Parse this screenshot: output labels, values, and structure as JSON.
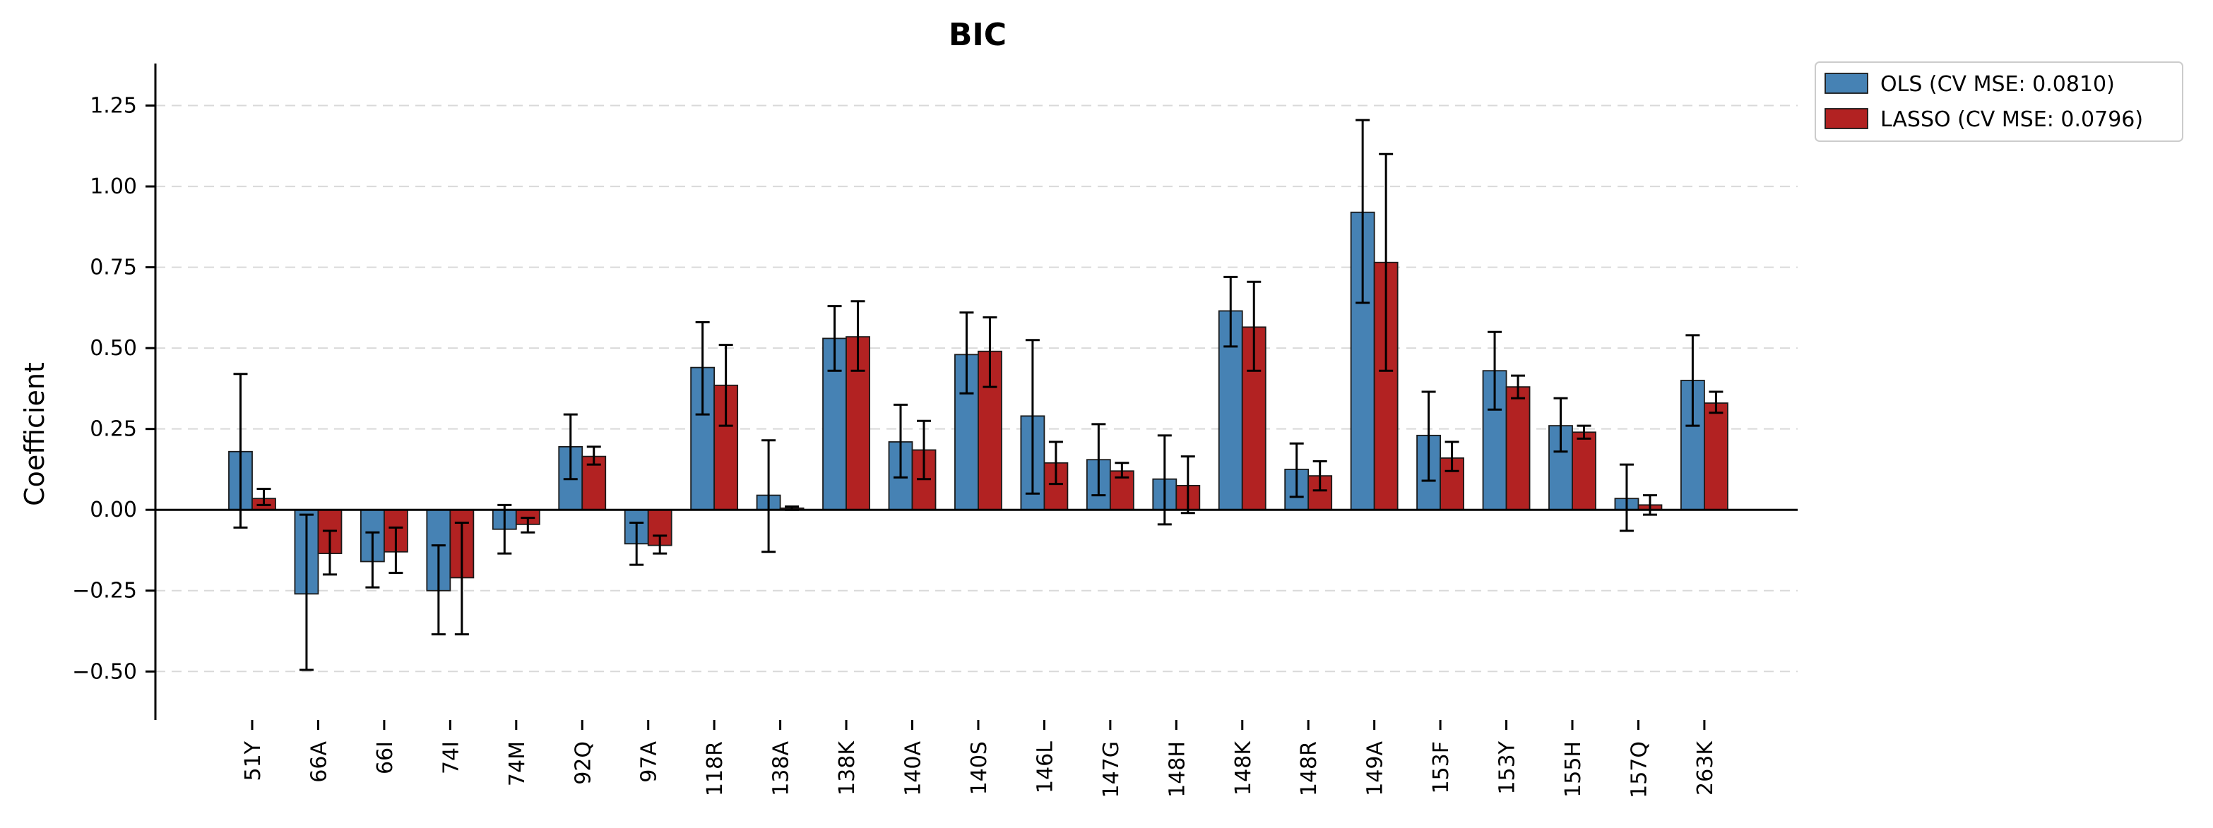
{
  "chart_data": {
    "type": "bar",
    "title": "BIC",
    "xlabel": "",
    "ylabel": "Coefficient",
    "ylim": [
      -0.65,
      1.38
    ],
    "yticks": [
      -0.5,
      -0.25,
      0.0,
      0.25,
      0.5,
      0.75,
      1.0,
      1.25
    ],
    "ytick_labels": [
      "−0.50",
      "−0.25",
      "0.00",
      "0.25",
      "0.50",
      "0.75",
      "1.00",
      "1.25"
    ],
    "grid": "y dashed",
    "legend_position": "upper-right, outside plot",
    "categories": [
      "51Y",
      "66A",
      "66I",
      "74I",
      "74M",
      "92Q",
      "97A",
      "118R",
      "138A",
      "138K",
      "140A",
      "140S",
      "146L",
      "147G",
      "148H",
      "148K",
      "148R",
      "149A",
      "153F",
      "153Y",
      "155H",
      "157Q",
      "263K"
    ],
    "series": [
      {
        "name": "OLS (CV MSE: 0.0810)",
        "color": "#4682b4",
        "values": [
          0.18,
          -0.26,
          -0.16,
          -0.25,
          -0.06,
          0.195,
          -0.105,
          0.44,
          0.045,
          0.53,
          0.21,
          0.48,
          0.29,
          0.155,
          0.095,
          0.615,
          0.125,
          0.92,
          0.23,
          0.43,
          0.26,
          0.035,
          0.4
        ],
        "error_low": [
          -0.055,
          -0.495,
          -0.24,
          -0.385,
          -0.135,
          0.095,
          -0.17,
          0.295,
          -0.13,
          0.43,
          0.1,
          0.36,
          0.05,
          0.045,
          -0.045,
          0.505,
          0.04,
          0.64,
          0.09,
          0.31,
          0.18,
          -0.065,
          0.26
        ],
        "error_high": [
          0.42,
          -0.015,
          -0.07,
          -0.11,
          0.015,
          0.295,
          -0.04,
          0.58,
          0.215,
          0.63,
          0.325,
          0.61,
          0.525,
          0.265,
          0.23,
          0.72,
          0.205,
          1.205,
          0.365,
          0.55,
          0.345,
          0.14,
          0.54
        ]
      },
      {
        "name": "LASSO (CV MSE: 0.0796)",
        "color": "#b22222",
        "values": [
          0.035,
          -0.135,
          -0.13,
          -0.21,
          -0.045,
          0.165,
          -0.11,
          0.385,
          0.005,
          0.535,
          0.185,
          0.49,
          0.145,
          0.12,
          0.075,
          0.565,
          0.105,
          0.765,
          0.16,
          0.38,
          0.24,
          0.015,
          0.33
        ],
        "error_low": [
          0.015,
          -0.2,
          -0.195,
          -0.385,
          -0.07,
          0.14,
          -0.135,
          0.26,
          0.0,
          0.43,
          0.095,
          0.38,
          0.08,
          0.1,
          -0.01,
          0.43,
          0.06,
          0.43,
          0.12,
          0.345,
          0.22,
          -0.015,
          0.3
        ],
        "error_high": [
          0.065,
          -0.065,
          -0.055,
          -0.04,
          -0.025,
          0.195,
          -0.08,
          0.51,
          0.01,
          0.645,
          0.275,
          0.595,
          0.21,
          0.145,
          0.165,
          0.705,
          0.15,
          1.1,
          0.21,
          0.415,
          0.26,
          0.045,
          0.365
        ]
      }
    ]
  }
}
